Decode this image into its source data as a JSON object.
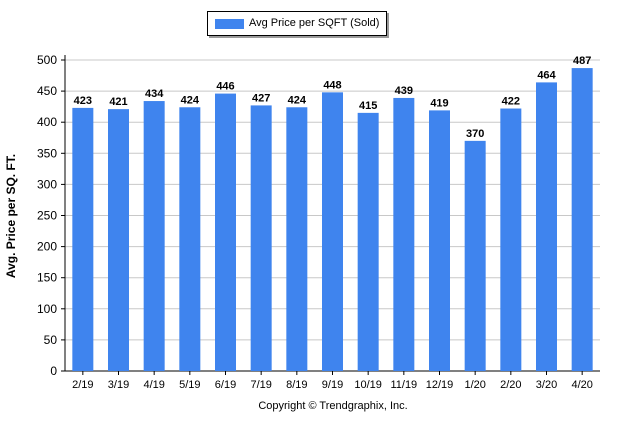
{
  "chart_data": {
    "type": "bar",
    "categories": [
      "2/19",
      "3/19",
      "4/19",
      "5/19",
      "6/19",
      "7/19",
      "8/19",
      "9/19",
      "10/19",
      "11/19",
      "12/19",
      "1/20",
      "2/20",
      "3/20",
      "4/20"
    ],
    "series": [
      {
        "name": "Avg Price per SQFT (Sold)",
        "values": [
          423,
          421,
          434,
          424,
          446,
          427,
          424,
          448,
          415,
          439,
          419,
          370,
          422,
          464,
          487
        ]
      }
    ],
    "ylabel": "Avg. Price per SQ. FT.",
    "xlabel": "",
    "ylim": [
      0,
      500
    ],
    "yticks": [
      0,
      50,
      100,
      150,
      200,
      250,
      300,
      350,
      400,
      450,
      500
    ],
    "grid": true,
    "legend_position": "top-center",
    "data_labels": true,
    "bar_color": "#3f84ee"
  },
  "footer": "Copyright © Trendgraphix, Inc."
}
